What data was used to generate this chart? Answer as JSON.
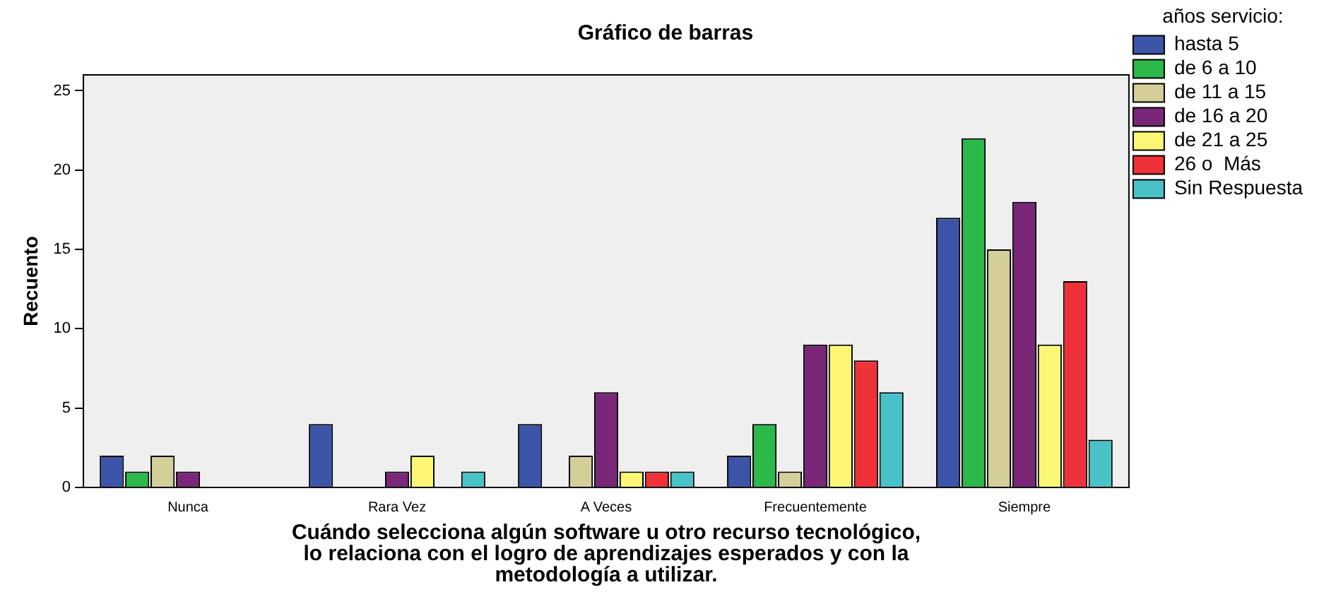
{
  "chart_data": {
    "type": "bar",
    "title": "Gráfico de barras",
    "xlabel": "Cuándo selecciona algún software u otro recurso tecnológico, lo relaciona con el logro de aprendizajes esperados y con la metodología a utilizar.",
    "ylabel": "Recuento",
    "legend_title": "años servicio:",
    "categories": [
      "Nunca",
      "Rara Vez",
      "A Veces",
      "Frecuentemente",
      "Siempre"
    ],
    "series": [
      {
        "name": "hasta 5",
        "color": "#3c55a8",
        "values": [
          2,
          4,
          4,
          2,
          17
        ]
      },
      {
        "name": "de 6 a 10",
        "color": "#2db84a",
        "values": [
          1,
          null,
          null,
          4,
          22
        ]
      },
      {
        "name": "de 11 a 15",
        "color": "#d4cf98",
        "values": [
          2,
          null,
          2,
          1,
          15
        ]
      },
      {
        "name": "de 16 a 20",
        "color": "#7a2779",
        "values": [
          1,
          1,
          6,
          9,
          18
        ]
      },
      {
        "name": "de 21 a 25",
        "color": "#fbf774",
        "values": [
          null,
          2,
          1,
          9,
          9
        ]
      },
      {
        "name": "26 o  Más",
        "color": "#ef3139",
        "values": [
          null,
          null,
          1,
          8,
          13
        ]
      },
      {
        "name": "Sin Respuesta",
        "color": "#48c2c8",
        "values": [
          null,
          1,
          1,
          6,
          3
        ]
      }
    ],
    "ylim": [
      0,
      26
    ],
    "yticks": [
      0,
      5,
      10,
      15,
      20,
      25
    ],
    "grid": false,
    "legend": "top right"
  }
}
